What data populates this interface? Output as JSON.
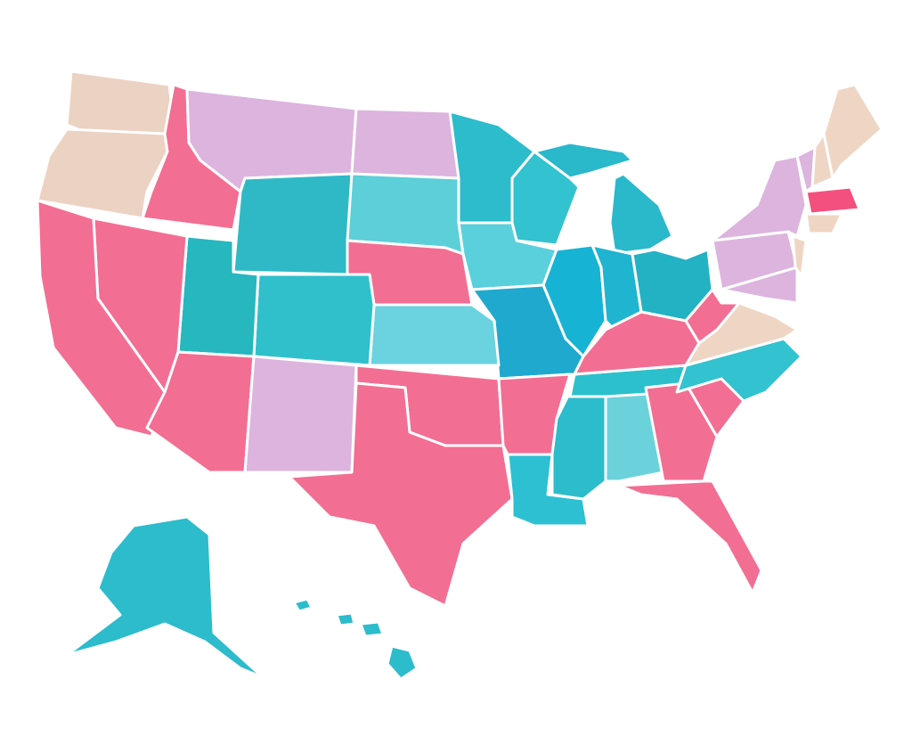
{
  "regions": [
    {
      "color": "#ecd2c3"
    },
    {
      "color": "#ecd2c3"
    },
    {
      "color": "#f36e93"
    },
    {
      "color": "#dcb4de"
    },
    {
      "color": "#dcb4de"
    },
    {
      "color": "#2cbccc"
    },
    {
      "color": "#2fb9c7"
    },
    {
      "color": "#5ccfd8"
    },
    {
      "color": "#f36e93"
    },
    {
      "color": "#33c2d0"
    },
    {
      "color": "#2ab8cb"
    },
    {
      "color": "#2ab8cb"
    },
    {
      "color": "#5ad0dc"
    },
    {
      "color": "#17b3d4"
    },
    {
      "color": "#1fb4d0"
    },
    {
      "color": "#22b2c4"
    },
    {
      "color": "#1fa9cf"
    },
    {
      "color": "#6bd2e0"
    },
    {
      "color": "#2fc0cc"
    },
    {
      "color": "#26b7bf"
    },
    {
      "color": "#f36e93"
    },
    {
      "color": "#f36e93"
    },
    {
      "color": "#f36e93"
    },
    {
      "color": "#dcb4de"
    },
    {
      "color": "#f36e93"
    },
    {
      "color": "#f36e93"
    },
    {
      "color": "#f36e93"
    },
    {
      "color": "#2cc0d2"
    },
    {
      "color": "#2cbccc"
    },
    {
      "color": "#6bd2dc"
    },
    {
      "color": "#2cc0cc"
    },
    {
      "color": "#f36e93"
    },
    {
      "color": "#f36e93"
    },
    {
      "color": "#f36e93"
    },
    {
      "color": "#f36e93"
    },
    {
      "color": "#33c2d0"
    },
    {
      "color": "#efd6c4"
    },
    {
      "color": "#f36e93"
    },
    {
      "color": "#dcb4de"
    },
    {
      "color": "#dcb4de"
    },
    {
      "color": "#dcb4de"
    },
    {
      "color": "#efd6c4"
    },
    {
      "color": "#dcb4de"
    },
    {
      "color": "#efd6c4"
    },
    {
      "color": "#efd6c4"
    },
    {
      "color": "#f3507e"
    },
    {
      "color": "#efd6c4"
    },
    {
      "color": "#2cbccc"
    },
    {
      "color": "#2cbccc"
    },
    {
      "color": "#2cbccc"
    },
    {
      "color": "#2cbccc"
    },
    {
      "color": "#2cbccc"
    }
  ]
}
